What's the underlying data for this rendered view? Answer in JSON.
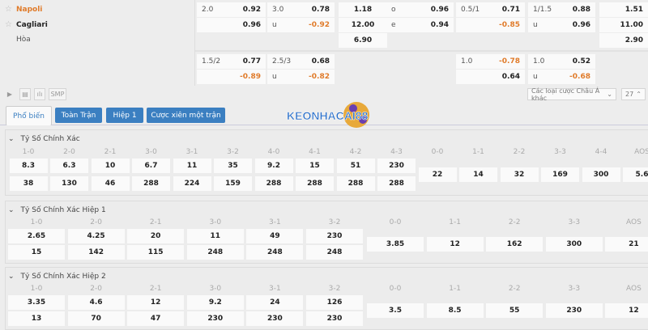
{
  "teams": {
    "home": "Napoli",
    "away": "Cagliari",
    "draw": "Hòa"
  },
  "colors": {
    "home_team": "#e07b2a",
    "negative": "#e07b2a",
    "tab_bg": "#3b7fc1"
  },
  "odds": [
    {
      "row": 0,
      "col": 0,
      "a": "2.0",
      "b": "0.92"
    },
    {
      "row": 0,
      "col": 1,
      "a": "3.0",
      "b": "0.78"
    },
    {
      "row": 0,
      "col": 2,
      "a": "",
      "b": "1.18"
    },
    {
      "row": 0,
      "col": 3,
      "a": "o",
      "b": "0.96"
    },
    {
      "row": 0,
      "col": 4,
      "a": "0.5/1",
      "b": "0.71"
    },
    {
      "row": 0,
      "col": 5,
      "a": "1/1.5",
      "b": "0.88"
    },
    {
      "row": 0,
      "col": 6,
      "a": "",
      "b": "1.51"
    },
    {
      "row": 1,
      "col": 0,
      "a": "",
      "b": "0.96"
    },
    {
      "row": 1,
      "col": 1,
      "a": "u",
      "b": "-0.92"
    },
    {
      "row": 1,
      "col": 2,
      "a": "",
      "b": "12.00"
    },
    {
      "row": 1,
      "col": 3,
      "a": "e",
      "b": "0.94"
    },
    {
      "row": 1,
      "col": 4,
      "a": "",
      "b": "-0.85"
    },
    {
      "row": 1,
      "col": 5,
      "a": "u",
      "b": "0.96"
    },
    {
      "row": 1,
      "col": 6,
      "a": "",
      "b": "11.00"
    },
    {
      "row": 2,
      "col": 2,
      "a": "",
      "b": "6.90"
    },
    {
      "row": 2,
      "col": 6,
      "a": "",
      "b": "2.90"
    },
    {
      "row": 3,
      "col": 0,
      "a": "1.5/2",
      "b": "0.77"
    },
    {
      "row": 3,
      "col": 1,
      "a": "2.5/3",
      "b": "0.68"
    },
    {
      "row": 3,
      "col": 4,
      "a": "1.0",
      "b": "-0.78"
    },
    {
      "row": 3,
      "col": 5,
      "a": "1.0",
      "b": "0.52"
    },
    {
      "row": 4,
      "col": 0,
      "a": "",
      "b": "-0.89"
    },
    {
      "row": 4,
      "col": 1,
      "a": "u",
      "b": "-0.82"
    },
    {
      "row": 4,
      "col": 4,
      "a": "",
      "b": "0.64"
    },
    {
      "row": 4,
      "col": 5,
      "a": "u",
      "b": "-0.68"
    }
  ],
  "toolbar": {
    "play_icon": "play-icon",
    "list_icon": "list-icon",
    "chart_icon": "bar-chart-icon",
    "smp": "SMP",
    "market_select": "Các loại cược Châu Á khác",
    "count": "27"
  },
  "tabs": [
    {
      "label": "Phổ biến",
      "active": true
    },
    {
      "label": "Toàn Trận"
    },
    {
      "label": "Hiệp 1"
    },
    {
      "label": "Cược xiên một trận"
    }
  ],
  "logo": "KEONHACAI88",
  "sections": [
    {
      "title": "Tỷ Số Chính Xác",
      "pairs": [
        [
          "1-0",
          "8.3",
          "38"
        ],
        [
          "2-0",
          "6.3",
          "130"
        ],
        [
          "2-1",
          "10",
          "46"
        ],
        [
          "3-0",
          "6.7",
          "288"
        ],
        [
          "3-1",
          "11",
          "224"
        ],
        [
          "3-2",
          "35",
          "159"
        ],
        [
          "4-0",
          "9.2",
          "288"
        ],
        [
          "4-1",
          "15",
          "288"
        ],
        [
          "4-2",
          "51",
          "288"
        ],
        [
          "4-3",
          "230",
          "288"
        ]
      ],
      "draws": [
        [
          "0-0",
          "22"
        ],
        [
          "1-1",
          "14"
        ],
        [
          "2-2",
          "32"
        ],
        [
          "3-3",
          "169"
        ],
        [
          "4-4",
          "300"
        ],
        [
          "AOS",
          "5.6"
        ]
      ]
    },
    {
      "title": "Tỷ Số Chính Xác Hiệp 1",
      "pairs": [
        [
          "1-0",
          "2.65",
          "15"
        ],
        [
          "2-0",
          "4.25",
          "142"
        ],
        [
          "2-1",
          "20",
          "115"
        ],
        [
          "3-0",
          "11",
          "248"
        ],
        [
          "3-1",
          "49",
          "248"
        ],
        [
          "3-2",
          "230",
          "248"
        ]
      ],
      "draws": [
        [
          "0-0",
          "3.85"
        ],
        [
          "1-1",
          "12"
        ],
        [
          "2-2",
          "162"
        ],
        [
          "3-3",
          "300"
        ],
        [
          "AOS",
          "21"
        ]
      ]
    },
    {
      "title": "Tỷ Số Chính Xác Hiệp 2",
      "pairs": [
        [
          "1-0",
          "3.35",
          "13"
        ],
        [
          "2-0",
          "4.6",
          "70"
        ],
        [
          "2-1",
          "12",
          "47"
        ],
        [
          "3-0",
          "9.2",
          "230"
        ],
        [
          "3-1",
          "24",
          "230"
        ],
        [
          "3-2",
          "126",
          "230"
        ]
      ],
      "draws": [
        [
          "0-0",
          "3.5"
        ],
        [
          "1-1",
          "8.5"
        ],
        [
          "2-2",
          "55"
        ],
        [
          "3-3",
          "230"
        ],
        [
          "AOS",
          "12"
        ]
      ]
    }
  ]
}
